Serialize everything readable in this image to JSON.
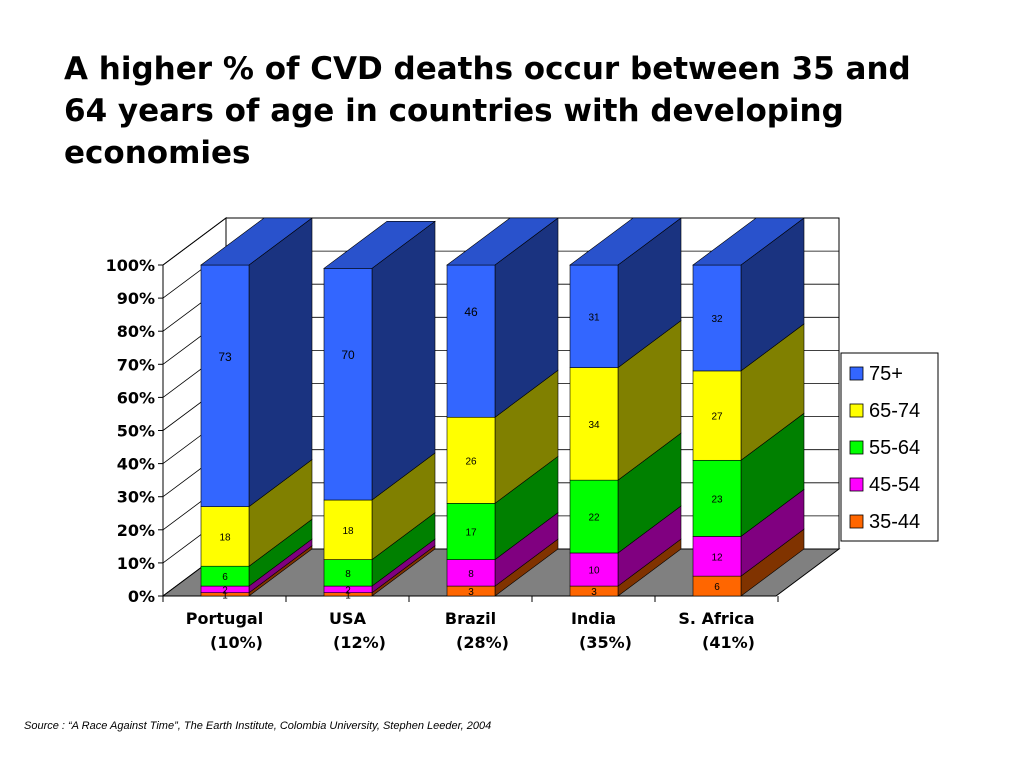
{
  "title": "A higher % of CVD deaths occur between 35 and 64 years of age in countries with developing economies",
  "source": "Source : “A Race Against Time”, The Earth Institute, Colombia University, Stephen Leeder, 2004",
  "colors": {
    "75+": "#3366FF",
    "65-74": "#FFFF00",
    "55-64": "#00FF00",
    "45-54": "#FF00FF",
    "35-44": "#FF6600",
    "plot_wall": "#FFFFFF",
    "plot_floor": "#808080"
  },
  "chart_data": {
    "type": "bar",
    "stacked": true,
    "three_d": true,
    "categories": [
      {
        "name": "Portugal",
        "sub": "(10%)"
      },
      {
        "name": "USA",
        "sub": "(12%)"
      },
      {
        "name": "Brazil",
        "sub": "(28%)"
      },
      {
        "name": "India",
        "sub": "(35%)"
      },
      {
        "name": "S. Africa",
        "sub": "(41%)"
      }
    ],
    "series": [
      {
        "name": "35-44",
        "values": [
          1,
          1,
          3,
          3,
          6
        ]
      },
      {
        "name": "45-54",
        "values": [
          2,
          2,
          8,
          10,
          12
        ]
      },
      {
        "name": "55-64",
        "values": [
          6,
          8,
          17,
          22,
          23
        ]
      },
      {
        "name": "65-74",
        "values": [
          18,
          18,
          26,
          34,
          27
        ]
      },
      {
        "name": "75+",
        "values": [
          73,
          70,
          46,
          31,
          32
        ]
      }
    ],
    "data_labels": [
      [
        "1",
        "1",
        "3",
        "3",
        "6"
      ],
      [
        "2",
        "2",
        "8",
        "10",
        "12"
      ],
      [
        "6",
        "8",
        "17",
        "22",
        "23"
      ],
      [
        "18",
        "18",
        "26",
        "34",
        "27"
      ],
      [
        "73",
        "70",
        "46",
        "31",
        "32"
      ]
    ],
    "y_ticks": [
      "0%",
      "10%",
      "20%",
      "30%",
      "40%",
      "50%",
      "60%",
      "70%",
      "80%",
      "90%",
      "100%"
    ],
    "ylim": [
      0,
      100
    ],
    "legend": {
      "position": "right",
      "entries": [
        "75+",
        "65-74",
        "55-64",
        "45-54",
        "35-44"
      ]
    }
  }
}
